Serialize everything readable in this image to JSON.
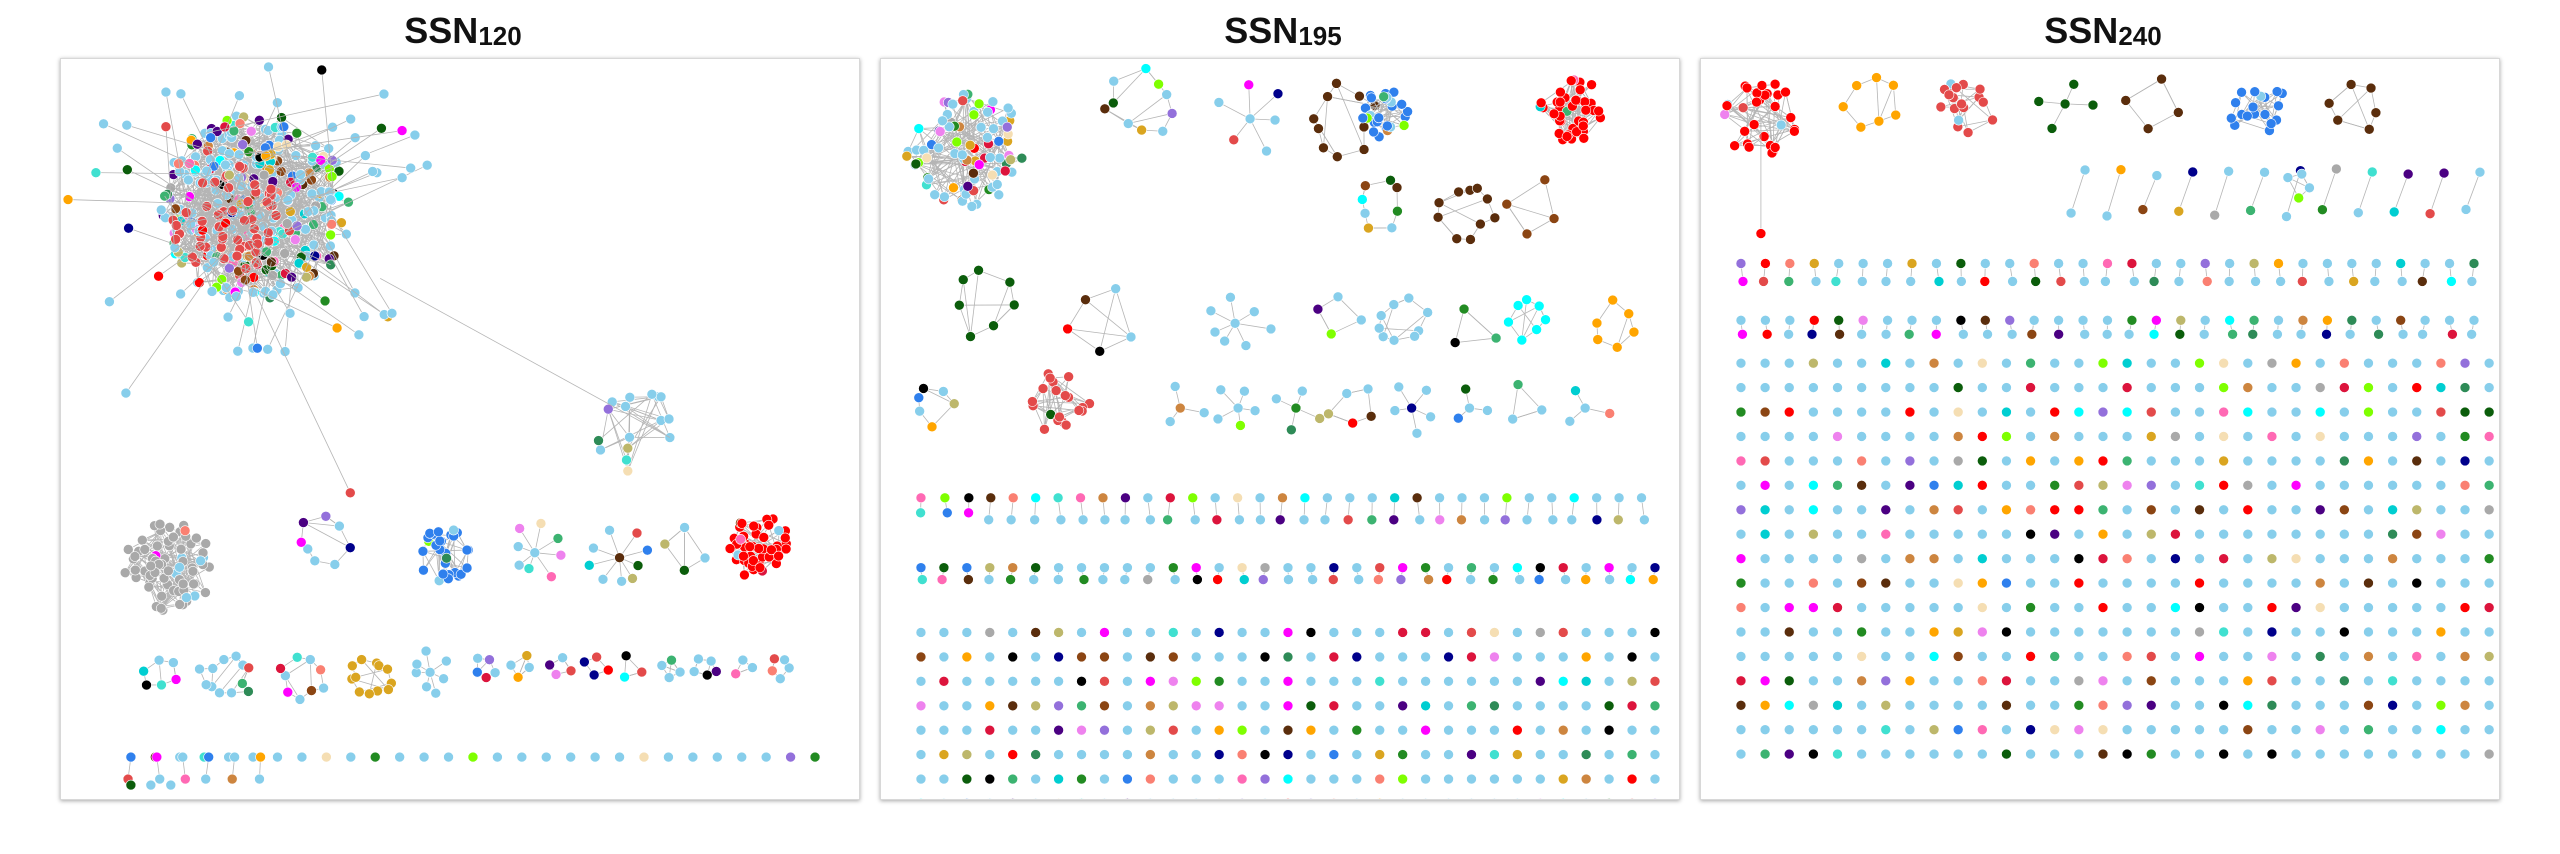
{
  "panels": [
    {
      "id": "p120",
      "title_main": "SSN",
      "title_sub": "120"
    },
    {
      "id": "p195",
      "title_main": "SSN",
      "title_sub": "195"
    },
    {
      "id": "p240",
      "title_main": "SSN",
      "title_sub": "240"
    }
  ],
  "colors": {
    "default_node": "#87ceeb",
    "edge": "#b5b5b5",
    "palette": [
      "#ff0000",
      "#e34a4a",
      "#2f80ed",
      "#5a2d0c",
      "#0b5d0b",
      "#ffa500",
      "#7fff00",
      "#ff69b4",
      "#9370db",
      "#40e0d0",
      "#8b4513",
      "#00008b",
      "#dc143c",
      "#daa520",
      "#00ced1",
      "#ee82ee",
      "#228b22",
      "#bdb76b",
      "#000000",
      "#ff00ff",
      "#2e8b57",
      "#cd853f",
      "#fa8072",
      "#4b0082",
      "#f5deb3",
      "#a9a9a9",
      "#3cb371",
      "#00ffff"
    ]
  }
}
